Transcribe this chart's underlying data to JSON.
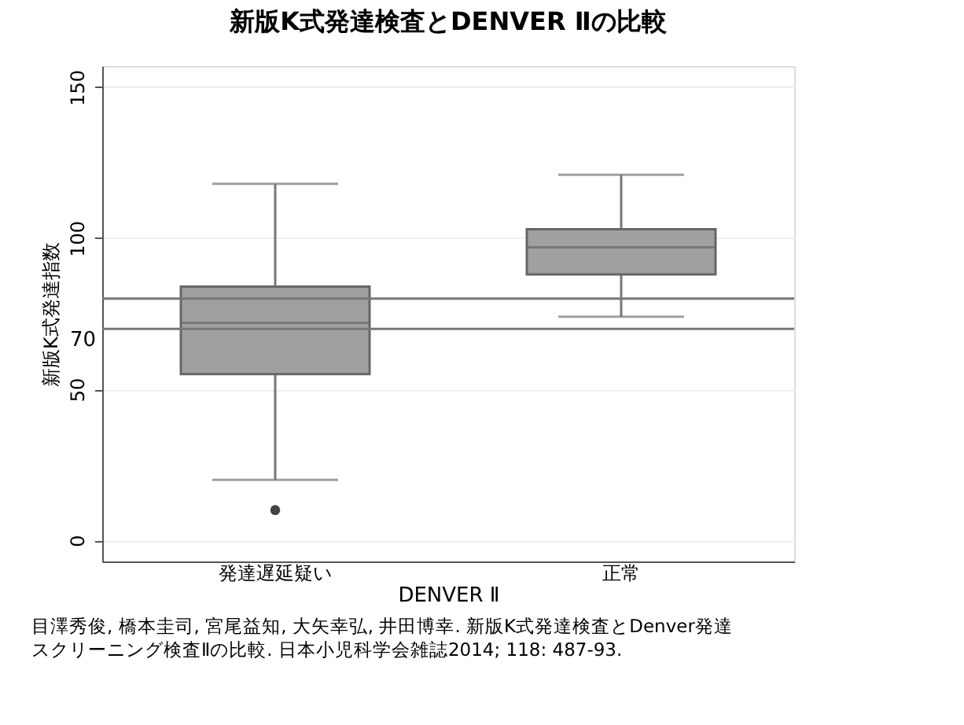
{
  "chart_data": {
    "type": "box",
    "title": "新版K式発達検査とDENVER Ⅱの比較",
    "xlabel": "DENVER Ⅱ",
    "ylabel": "新版K式発達指数",
    "categories": [
      "発達遅延疑い",
      "正常"
    ],
    "series": [
      {
        "color": "#a0a0a0",
        "boxes": [
          {
            "low": 20,
            "q1": 55,
            "median": 72,
            "q3": 84,
            "high": 118,
            "outliers": [
              10
            ]
          },
          {
            "low": 74,
            "q1": 88,
            "median": 97,
            "q3": 103,
            "high": 121
          }
        ]
      }
    ],
    "ylim": [
      -7,
      157
    ],
    "yticks": [
      0,
      50,
      100,
      150
    ],
    "grid": "y",
    "ref_lines": [
      {
        "axis": "y",
        "value": 70,
        "label": "70"
      },
      {
        "axis": "y",
        "value": 80
      }
    ],
    "annotations": [
      "目澤秀俊, 橋本圭司, 宮尾益知, 大矢幸弘, 井田博幸. 新版K式発達検査とDenver発達",
      "スクリーニング検査Ⅱの比較. 日本小児科学会雑誌2014; 118: 487-93."
    ]
  }
}
